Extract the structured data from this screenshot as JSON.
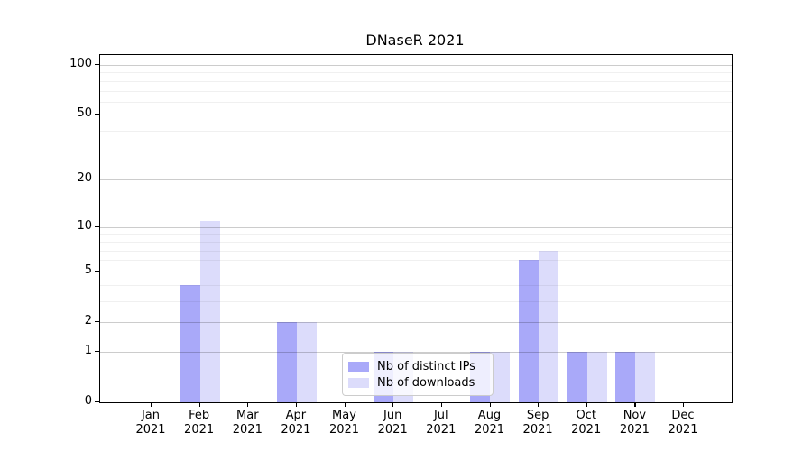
{
  "figure": {
    "title": "DNaseR 2021"
  },
  "chart_data": {
    "type": "bar",
    "title": "DNaseR 2021",
    "categories": [
      "Jan 2021",
      "Feb 2021",
      "Mar 2021",
      "Apr 2021",
      "May 2021",
      "Jun 2021",
      "Jul 2021",
      "Aug 2021",
      "Sep 2021",
      "Oct 2021",
      "Nov 2021",
      "Dec 2021"
    ],
    "series": [
      {
        "name": "Nb of distinct IPs",
        "color": "#a9a9f9",
        "values": [
          0,
          4,
          0,
          2,
          0,
          1,
          0,
          1,
          6,
          1,
          1,
          0
        ]
      },
      {
        "name": "Nb of downloads",
        "color": "#dcdcfb",
        "values": [
          0,
          11,
          0,
          2,
          0,
          1,
          0,
          1,
          7,
          1,
          1,
          0
        ]
      }
    ],
    "y_axis": {
      "scale": "log1p",
      "tick_values": [
        0,
        1,
        2,
        5,
        10,
        20,
        50,
        100
      ],
      "tick_labels": [
        "0",
        "1",
        "2",
        "5",
        "10",
        "20",
        "50",
        "100"
      ],
      "minor_gridline_values": [
        3,
        4,
        6,
        7,
        8,
        9,
        30,
        40,
        60,
        70,
        80,
        90
      ],
      "range": [
        0,
        114
      ]
    },
    "x_axis": {
      "label_lines": 2
    },
    "legend": {
      "position": "inside-bottom-center",
      "items": [
        "Nb of distinct IPs",
        "Nb of downloads"
      ]
    },
    "grid": true,
    "colors": {
      "grid_major": "rgba(0,0,0,0.2)",
      "grid_minor": "rgba(0,0,0,0.06)",
      "spine": "#000000",
      "legend_border": "#cccccc",
      "legend_background": "rgba(255,255,255,0.8)",
      "text": "#000000"
    }
  }
}
